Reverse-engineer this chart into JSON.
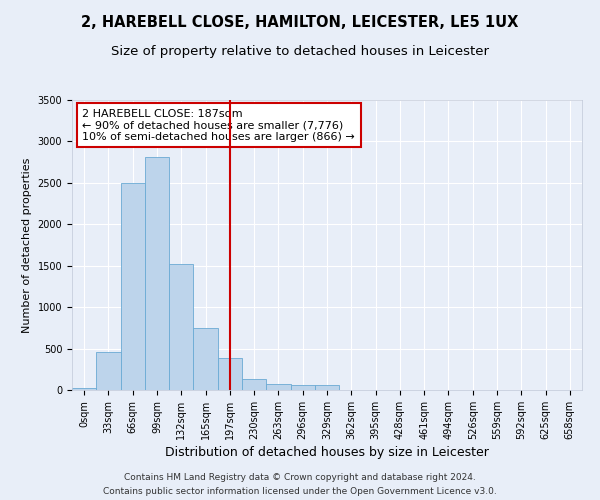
{
  "title": "2, HAREBELL CLOSE, HAMILTON, LEICESTER, LE5 1UX",
  "subtitle": "Size of property relative to detached houses in Leicester",
  "xlabel": "Distribution of detached houses by size in Leicester",
  "ylabel": "Number of detached properties",
  "bin_labels": [
    "0sqm",
    "33sqm",
    "66sqm",
    "99sqm",
    "132sqm",
    "165sqm",
    "197sqm",
    "230sqm",
    "263sqm",
    "296sqm",
    "329sqm",
    "362sqm",
    "395sqm",
    "428sqm",
    "461sqm",
    "494sqm",
    "526sqm",
    "559sqm",
    "592sqm",
    "625sqm",
    "658sqm"
  ],
  "bar_values": [
    30,
    460,
    2500,
    2810,
    1520,
    750,
    390,
    135,
    70,
    55,
    55,
    0,
    0,
    0,
    0,
    0,
    0,
    0,
    0,
    0,
    0
  ],
  "bar_color": "#bdd4eb",
  "bar_edge_color": "#6aaad4",
  "vline_x_index": 6,
  "vline_color": "#cc0000",
  "annotation_line1": "2 HAREBELL CLOSE: 187sqm",
  "annotation_line2": "← 90% of detached houses are smaller (7,776)",
  "annotation_line3": "10% of semi-detached houses are larger (866) →",
  "annotation_box_color": "#ffffff",
  "annotation_box_edge": "#cc0000",
  "ylim": [
    0,
    3500
  ],
  "yticks": [
    0,
    500,
    1000,
    1500,
    2000,
    2500,
    3000,
    3500
  ],
  "footer_line1": "Contains HM Land Registry data © Crown copyright and database right 2024.",
  "footer_line2": "Contains public sector information licensed under the Open Government Licence v3.0.",
  "bg_color": "#e8eef8",
  "grid_color": "#ffffff",
  "title_fontsize": 10.5,
  "subtitle_fontsize": 9.5,
  "ylabel_fontsize": 8,
  "xlabel_fontsize": 9,
  "tick_fontsize": 7,
  "annotation_fontsize": 8,
  "footer_fontsize": 6.5
}
